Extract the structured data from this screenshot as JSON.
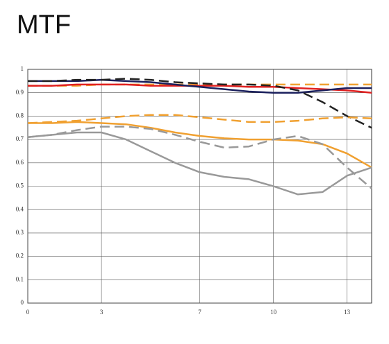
{
  "chart_data": {
    "type": "line",
    "title": "MTF",
    "x": [
      0,
      1,
      2,
      3,
      4,
      5,
      6,
      7,
      8,
      9,
      10,
      11,
      12,
      13,
      14
    ],
    "xlim": [
      0,
      14
    ],
    "xticks": [
      0,
      3,
      7,
      10,
      13
    ],
    "ylim": [
      0,
      1
    ],
    "yticks": [
      0,
      0.1,
      0.2,
      0.3,
      0.4,
      0.5,
      0.6,
      0.7,
      0.8,
      0.9,
      1
    ],
    "grid": true,
    "series": [
      {
        "color": "#f0a030",
        "dash": true,
        "values": [
          0.93,
          0.93,
          0.93,
          0.935,
          0.935,
          0.935,
          0.935,
          0.935,
          0.935,
          0.935,
          0.935,
          0.935,
          0.935,
          0.935,
          0.935
        ]
      },
      {
        "color": "#e02020",
        "dash": false,
        "values": [
          0.93,
          0.93,
          0.935,
          0.935,
          0.935,
          0.93,
          0.93,
          0.93,
          0.93,
          0.925,
          0.925,
          0.92,
          0.915,
          0.91,
          0.9
        ]
      },
      {
        "color": "#1a1f5c",
        "dash": false,
        "values": [
          0.95,
          0.95,
          0.95,
          0.955,
          0.95,
          0.945,
          0.935,
          0.925,
          0.915,
          0.905,
          0.9,
          0.9,
          0.91,
          0.92,
          0.92
        ]
      },
      {
        "color": "#222222",
        "dash": true,
        "values": [
          0.95,
          0.95,
          0.955,
          0.955,
          0.96,
          0.955,
          0.945,
          0.94,
          0.935,
          0.935,
          0.93,
          0.91,
          0.86,
          0.8,
          0.75
        ]
      },
      {
        "color": "#f0a030",
        "dash": true,
        "values": [
          0.77,
          0.775,
          0.78,
          0.79,
          0.8,
          0.805,
          0.805,
          0.795,
          0.785,
          0.775,
          0.775,
          0.78,
          0.79,
          0.795,
          0.79
        ]
      },
      {
        "color": "#f0a030",
        "dash": false,
        "values": [
          0.77,
          0.77,
          0.775,
          0.77,
          0.765,
          0.75,
          0.73,
          0.715,
          0.705,
          0.7,
          0.7,
          0.695,
          0.68,
          0.64,
          0.58
        ]
      },
      {
        "color": "#999999",
        "dash": true,
        "values": [
          0.71,
          0.72,
          0.74,
          0.755,
          0.755,
          0.745,
          0.72,
          0.69,
          0.665,
          0.67,
          0.7,
          0.715,
          0.68,
          0.58,
          0.49
        ]
      },
      {
        "color": "#999999",
        "dash": false,
        "values": [
          0.71,
          0.72,
          0.73,
          0.73,
          0.7,
          0.65,
          0.6,
          0.56,
          0.54,
          0.53,
          0.5,
          0.465,
          0.475,
          0.545,
          0.58
        ]
      }
    ]
  }
}
